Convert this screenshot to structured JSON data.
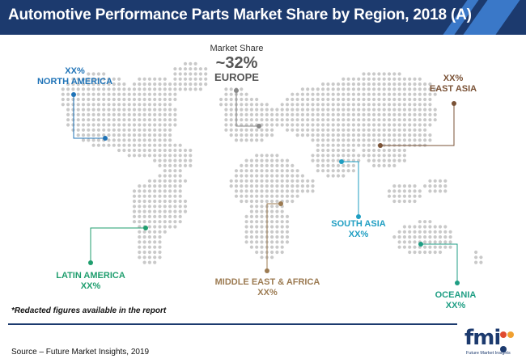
{
  "title": "Automotive Performance Parts Market Share by Region, 2018 (A)",
  "europe": {
    "share_label": "Market Share",
    "share_value": "~32%",
    "name": "EUROPE"
  },
  "regions": {
    "north_america": {
      "value": "XX%",
      "name": "NORTH AMERICA"
    },
    "east_asia": {
      "value": "XX%",
      "name": "EAST ASIA"
    },
    "south_asia": {
      "name": "SOUTH ASIA",
      "value": "XX%"
    },
    "latin_america": {
      "name": "LATIN AMERICA",
      "value": "XX%"
    },
    "middle_east_africa": {
      "name": "MIDDLE EAST & AFRICA",
      "value": "XX%"
    },
    "oceania": {
      "name": "OCEANIA",
      "value": "XX%"
    }
  },
  "note": "*Redacted figures available in the report",
  "source": "Source – Future Market Insights, 2019",
  "logo": {
    "mark": "fmi",
    "tagline": "Future Market Insights"
  },
  "colors": {
    "header": "#1c3a6e",
    "header_stripe": "#3a78c8",
    "north_america": "#1f73b7",
    "europe": "#888888",
    "east_asia": "#7a5236",
    "south_asia": "#1f9ec2",
    "latin_america": "#1f9e6e",
    "middle_east_africa": "#9c7b52",
    "oceania": "#1f9e84",
    "map_dots": "#c9c9c9"
  }
}
